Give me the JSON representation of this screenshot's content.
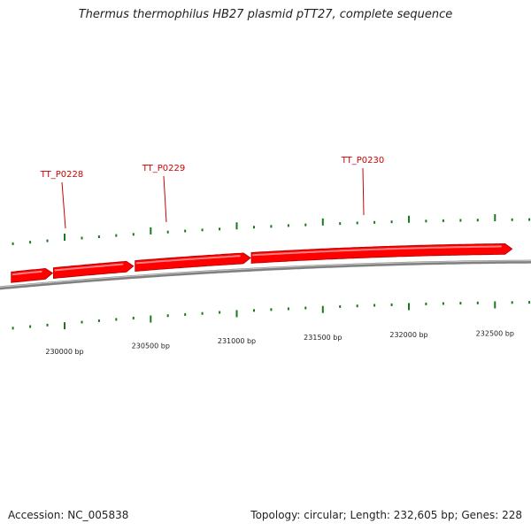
{
  "title": "Thermus thermophilus HB27 plasmid pTT27, complete sequence",
  "footer": {
    "accession": "Accession: NC_005838",
    "summary": "Topology: circular; Length: 232,605 bp; Genes: 228"
  },
  "colors": {
    "gene": "#ff0000",
    "gene_label": "#cc0000",
    "tick": "#1a7a1a",
    "backbone": "#808080",
    "text": "#222222"
  },
  "genes": [
    {
      "label": "",
      "start": 229690,
      "end": 229930,
      "strand": "+"
    },
    {
      "label": "TT_P0228",
      "start": 229935,
      "end": 230400,
      "strand": "+"
    },
    {
      "label": "TT_P0229",
      "start": 230410,
      "end": 231080,
      "strand": "+"
    },
    {
      "label": "TT_P0230",
      "start": 231085,
      "end": 232600,
      "strand": "+"
    }
  ],
  "axis_labels": [
    "230000 bp",
    "230500 bp",
    "231000 bp",
    "231500 bp",
    "232000 bp",
    "232500 bp"
  ],
  "axis_positions": [
    230000,
    230500,
    231000,
    231500,
    232000,
    232500
  ],
  "tick_interval_bp": 100
}
